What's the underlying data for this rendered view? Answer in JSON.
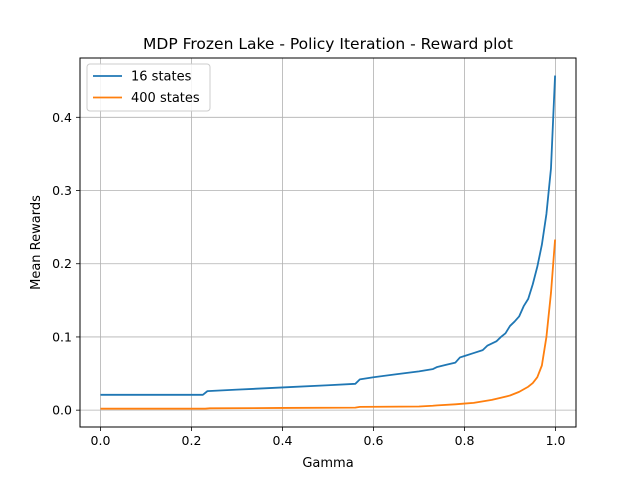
{
  "chart_data": {
    "type": "line",
    "title": "MDP Frozen Lake - Policy Iteration - Reward plot",
    "xlabel": "Gamma",
    "ylabel": "Mean Rewards",
    "xlim": [
      -0.045,
      1.045
    ],
    "ylim": [
      -0.023,
      0.481
    ],
    "xticks": [
      0.0,
      0.2,
      0.4,
      0.6,
      0.8,
      1.0
    ],
    "xtick_labels": [
      "0.0",
      "0.2",
      "0.4",
      "0.6",
      "0.8",
      "1.0"
    ],
    "yticks": [
      0.0,
      0.1,
      0.2,
      0.3,
      0.4
    ],
    "ytick_labels": [
      "0.0",
      "0.1",
      "0.2",
      "0.3",
      "0.4"
    ],
    "grid": true,
    "legend_position": "upper-left",
    "series": [
      {
        "name": "16 states",
        "color": "#1f77b4",
        "points": [
          [
            0.0,
            0.021
          ],
          [
            0.1,
            0.021
          ],
          [
            0.2,
            0.021
          ],
          [
            0.225,
            0.021
          ],
          [
            0.235,
            0.026
          ],
          [
            0.3,
            0.028
          ],
          [
            0.4,
            0.031
          ],
          [
            0.5,
            0.034
          ],
          [
            0.56,
            0.036
          ],
          [
            0.57,
            0.042
          ],
          [
            0.6,
            0.045
          ],
          [
            0.65,
            0.049
          ],
          [
            0.7,
            0.053
          ],
          [
            0.73,
            0.056
          ],
          [
            0.74,
            0.059
          ],
          [
            0.76,
            0.062
          ],
          [
            0.78,
            0.065
          ],
          [
            0.79,
            0.072
          ],
          [
            0.8,
            0.074
          ],
          [
            0.82,
            0.078
          ],
          [
            0.84,
            0.082
          ],
          [
            0.85,
            0.088
          ],
          [
            0.87,
            0.094
          ],
          [
            0.88,
            0.1
          ],
          [
            0.89,
            0.105
          ],
          [
            0.9,
            0.115
          ],
          [
            0.91,
            0.121
          ],
          [
            0.92,
            0.128
          ],
          [
            0.93,
            0.142
          ],
          [
            0.94,
            0.152
          ],
          [
            0.95,
            0.172
          ],
          [
            0.96,
            0.196
          ],
          [
            0.97,
            0.226
          ],
          [
            0.98,
            0.268
          ],
          [
            0.99,
            0.33
          ],
          [
            0.999,
            0.457
          ]
        ]
      },
      {
        "name": "400 states",
        "color": "#ff7f0e",
        "points": [
          [
            0.0,
            0.002
          ],
          [
            0.2,
            0.002
          ],
          [
            0.23,
            0.002
          ],
          [
            0.24,
            0.0025
          ],
          [
            0.4,
            0.003
          ],
          [
            0.56,
            0.0035
          ],
          [
            0.57,
            0.0045
          ],
          [
            0.7,
            0.005
          ],
          [
            0.73,
            0.006
          ],
          [
            0.74,
            0.0065
          ],
          [
            0.78,
            0.008
          ],
          [
            0.8,
            0.009
          ],
          [
            0.82,
            0.01
          ],
          [
            0.84,
            0.012
          ],
          [
            0.86,
            0.014
          ],
          [
            0.88,
            0.017
          ],
          [
            0.9,
            0.02
          ],
          [
            0.92,
            0.025
          ],
          [
            0.94,
            0.032
          ],
          [
            0.95,
            0.037
          ],
          [
            0.96,
            0.045
          ],
          [
            0.97,
            0.061
          ],
          [
            0.98,
            0.1
          ],
          [
            0.99,
            0.16
          ],
          [
            0.999,
            0.233
          ]
        ]
      }
    ]
  }
}
